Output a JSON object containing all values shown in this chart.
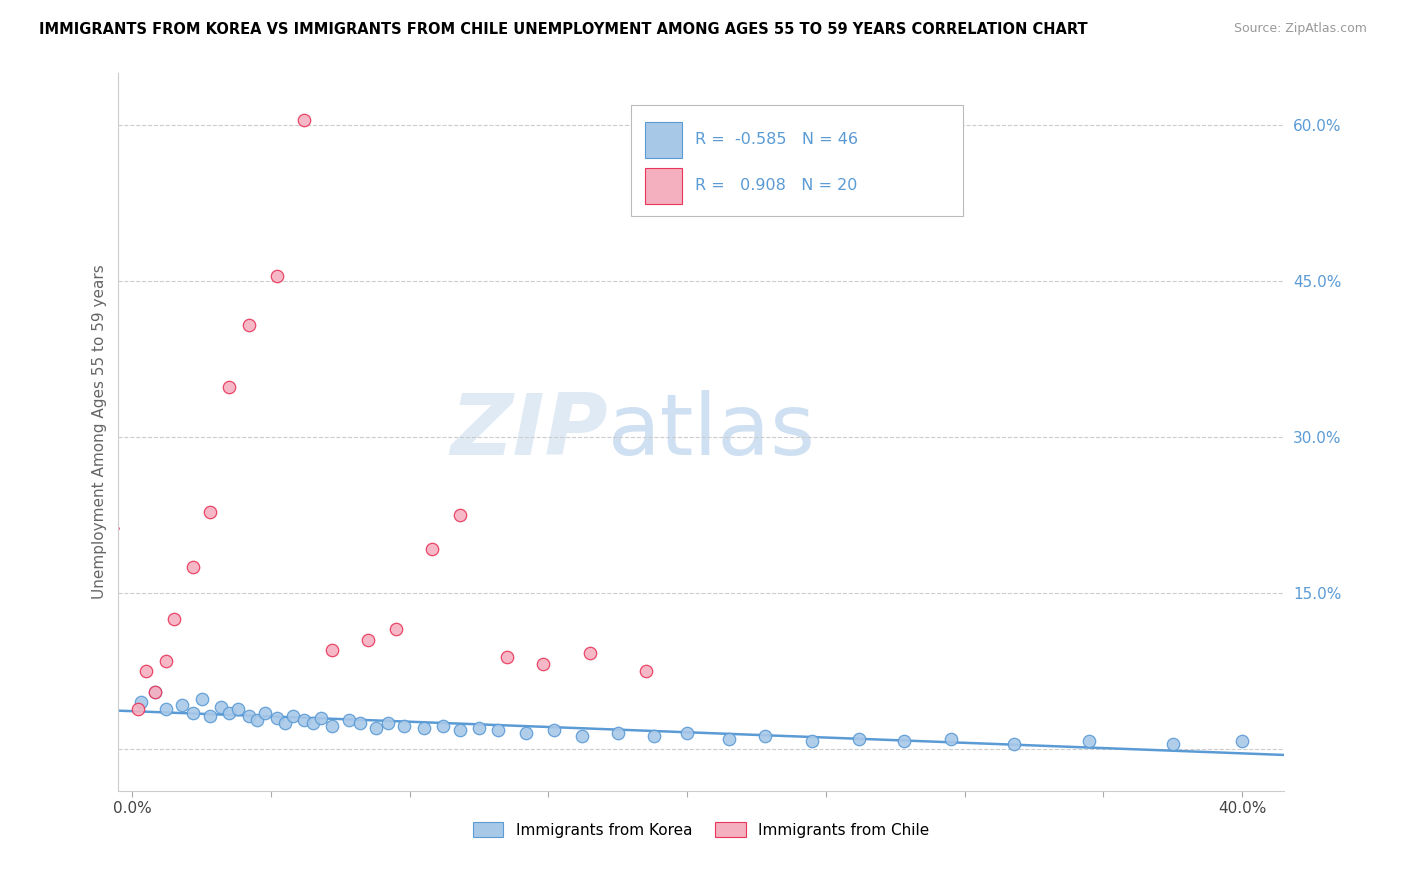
{
  "title": "IMMIGRANTS FROM KOREA VS IMMIGRANTS FROM CHILE UNEMPLOYMENT AMONG AGES 55 TO 59 YEARS CORRELATION CHART",
  "source": "Source: ZipAtlas.com",
  "ylabel": "Unemployment Among Ages 55 to 59 years",
  "legend_korea": "Immigrants from Korea",
  "legend_chile": "Immigrants from Chile",
  "R_korea": -0.585,
  "N_korea": 46,
  "R_chile": 0.908,
  "N_chile": 20,
  "color_korea": "#a8c8e8",
  "color_chile": "#f5b0c0",
  "line_color_korea": "#5b9bd5",
  "line_color_chile": "#e8365a",
  "xlim": [
    -0.005,
    0.415
  ],
  "ylim": [
    -0.04,
    0.65
  ],
  "xticks": [
    0.0,
    0.05,
    0.1,
    0.15,
    0.2,
    0.25,
    0.3,
    0.35,
    0.4
  ],
  "yticks_right": [
    0.0,
    0.15,
    0.3,
    0.45,
    0.6
  ],
  "ytick_labels_right": [
    "",
    "15.0%",
    "30.0%",
    "45.0%",
    "60.0%"
  ],
  "watermark_zip": "ZIP",
  "watermark_atlas": "atlas",
  "korea_x": [
    0.003,
    0.008,
    0.012,
    0.018,
    0.022,
    0.025,
    0.028,
    0.032,
    0.035,
    0.038,
    0.042,
    0.045,
    0.048,
    0.052,
    0.055,
    0.058,
    0.062,
    0.065,
    0.068,
    0.072,
    0.078,
    0.082,
    0.088,
    0.092,
    0.098,
    0.105,
    0.112,
    0.118,
    0.125,
    0.132,
    0.142,
    0.152,
    0.162,
    0.175,
    0.188,
    0.2,
    0.215,
    0.228,
    0.245,
    0.262,
    0.278,
    0.295,
    0.318,
    0.345,
    0.375,
    0.4
  ],
  "korea_y": [
    0.045,
    0.055,
    0.038,
    0.042,
    0.035,
    0.048,
    0.032,
    0.04,
    0.035,
    0.038,
    0.032,
    0.028,
    0.035,
    0.03,
    0.025,
    0.032,
    0.028,
    0.025,
    0.03,
    0.022,
    0.028,
    0.025,
    0.02,
    0.025,
    0.022,
    0.02,
    0.022,
    0.018,
    0.02,
    0.018,
    0.015,
    0.018,
    0.012,
    0.015,
    0.012,
    0.015,
    0.01,
    0.012,
    0.008,
    0.01,
    0.008,
    0.01,
    0.005,
    0.008,
    0.005,
    0.008
  ],
  "chile_x": [
    0.002,
    0.005,
    0.008,
    0.012,
    0.015,
    0.022,
    0.028,
    0.035,
    0.042,
    0.052,
    0.062,
    0.072,
    0.085,
    0.095,
    0.108,
    0.118,
    0.135,
    0.148,
    0.165,
    0.185
  ],
  "chile_y": [
    0.038,
    0.075,
    0.055,
    0.085,
    0.125,
    0.175,
    0.228,
    0.348,
    0.408,
    0.455,
    0.605,
    0.095,
    0.105,
    0.115,
    0.192,
    0.225,
    0.088,
    0.082,
    0.092,
    0.075
  ]
}
